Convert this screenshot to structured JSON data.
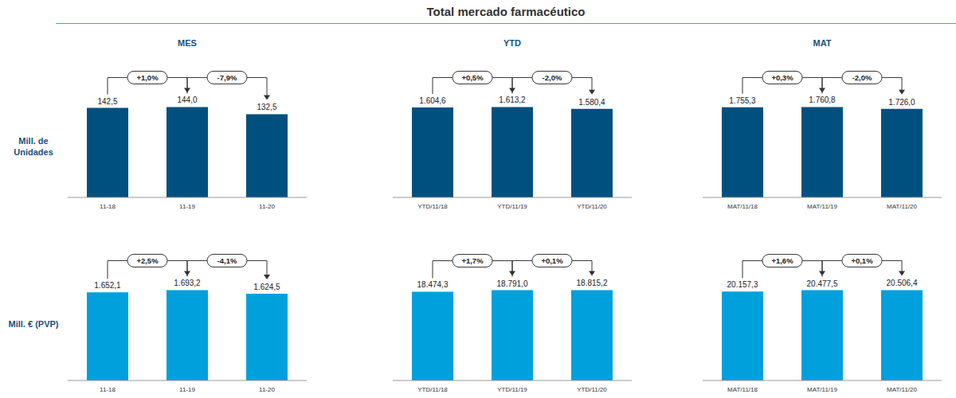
{
  "title": "Total mercado farmacéutico",
  "chart_data": [
    {
      "type": "bar",
      "title": "MES",
      "ylabel": "Mill. de Unidades",
      "categories": [
        "11-18",
        "11-19",
        "11-20"
      ],
      "values": [
        142.5,
        144.0,
        132.5
      ],
      "value_labels": [
        "142,5",
        "144,0",
        "132,5"
      ],
      "annotations": [
        "+1,0%",
        "-7,9%"
      ],
      "color": "#00507f",
      "data_labels": true,
      "tick_labels": "x"
    },
    {
      "type": "bar",
      "title": "YTD",
      "categories": [
        "YTD/11/18",
        "YTD/11/19",
        "YTD/11/20"
      ],
      "values": [
        1604.6,
        1613.2,
        1580.4
      ],
      "value_labels": [
        "1.604,6",
        "1.613,2",
        "1.580,4"
      ],
      "annotations": [
        "+0,5%",
        "-2,0%"
      ],
      "color": "#00507f",
      "data_labels": true,
      "tick_labels": "x"
    },
    {
      "type": "bar",
      "title": "MAT",
      "categories": [
        "MAT/11/18",
        "MAT/11/19",
        "MAT/11/20"
      ],
      "values": [
        1755.3,
        1760.8,
        1726.0
      ],
      "value_labels": [
        "1.755,3",
        "1.760,8",
        "1.726,0"
      ],
      "annotations": [
        "+0,3%",
        "-2,0%"
      ],
      "color": "#00507f",
      "data_labels": true,
      "tick_labels": "x"
    },
    {
      "type": "bar",
      "ylabel": "Mill. € (PVP)",
      "categories": [
        "11-18",
        "11-19",
        "11-20"
      ],
      "values": [
        1652.1,
        1693.2,
        1624.5
      ],
      "value_labels": [
        "1.652,1",
        "1.693,2",
        "1.624,5"
      ],
      "annotations": [
        "+2,5%",
        "-4,1%"
      ],
      "color": "#00a0dc",
      "data_labels": true,
      "tick_labels": "x"
    },
    {
      "type": "bar",
      "categories": [
        "YTD/11/18",
        "YTD/11/19",
        "YTD/11/20"
      ],
      "values": [
        18474.3,
        18791.0,
        18815.2
      ],
      "value_labels": [
        "18.474,3",
        "18.791,0",
        "18.815,2"
      ],
      "annotations": [
        "+1,7%",
        "+0,1%"
      ],
      "color": "#00a0dc",
      "data_labels": true,
      "tick_labels": "x"
    },
    {
      "type": "bar",
      "categories": [
        "MAT/11/18",
        "MAT/11/19",
        "MAT/11/20"
      ],
      "values": [
        20157.3,
        20477.5,
        20506.4
      ],
      "value_labels": [
        "20.157,3",
        "20.477,5",
        "20.506,4"
      ],
      "annotations": [
        "+1,6%",
        "+0,1%"
      ],
      "color": "#00a0dc",
      "data_labels": true,
      "tick_labels": "x"
    }
  ]
}
